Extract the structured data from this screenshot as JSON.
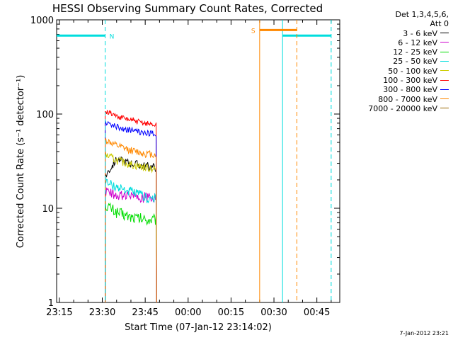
{
  "chart_data": {
    "type": "line",
    "title": "HESSI Observing Summary Count Rates, Corrected",
    "xlabel": "Start Time (07-Jan-12 23:14:02)",
    "ylabel": "Corrected Count Rate (s⁻¹ detector⁻¹)",
    "y_scale": "log",
    "ylim": [
      1,
      1000
    ],
    "xlim": [
      "23:14:02",
      "00:53:00"
    ],
    "x_ticks": [
      "23:15",
      "23:30",
      "23:45",
      "00:00",
      "00:15",
      "00:30",
      "00:45"
    ],
    "y_ticks": [
      "1",
      "10",
      "100",
      "1000"
    ],
    "legend_header": [
      "Det 1,3,4,5,6,",
      "Att 0"
    ],
    "legend_position": "top-right, outside plot",
    "series": [
      {
        "name": "3 - 6 keV",
        "color": "#000000",
        "x": [
          "23:31",
          "23:35",
          "23:40",
          "23:45",
          "23:49"
        ],
        "values": [
          22,
          33,
          30,
          28,
          27
        ]
      },
      {
        "name": "6 - 12 keV",
        "color": "#cc00cc",
        "x": [
          "23:31",
          "23:35",
          "23:40",
          "23:45",
          "23:49"
        ],
        "values": [
          15,
          14,
          13.5,
          13,
          12.5
        ]
      },
      {
        "name": "12 - 25 keV",
        "color": "#00dd00",
        "x": [
          "23:31",
          "23:35",
          "23:40",
          "23:45",
          "23:49"
        ],
        "values": [
          11,
          9,
          8,
          7.5,
          7.5
        ]
      },
      {
        "name": "25 - 50 keV",
        "color": "#00dddd",
        "x": [
          "23:31",
          "23:35",
          "23:40",
          "23:45",
          "23:49"
        ],
        "values": [
          19,
          17,
          15,
          13,
          12.5
        ]
      },
      {
        "name": "50 - 100 keV",
        "color": "#cccc00",
        "x": [
          "23:31",
          "23:35",
          "23:40",
          "23:45",
          "23:49"
        ],
        "values": [
          37,
          32,
          29,
          27,
          26
        ]
      },
      {
        "name": "100 - 300 keV",
        "color": "#ff0000",
        "x": [
          "23:31",
          "23:35",
          "23:40",
          "23:45",
          "23:49"
        ],
        "values": [
          108,
          95,
          86,
          80,
          76
        ]
      },
      {
        "name": "300 - 800 keV",
        "color": "#0000ff",
        "x": [
          "23:31",
          "23:35",
          "23:40",
          "23:45",
          "23:49"
        ],
        "values": [
          83,
          73,
          67,
          63,
          61
        ]
      },
      {
        "name": "800 - 7000 keV",
        "color": "#ff8800",
        "x": [
          "23:31",
          "23:35",
          "23:40",
          "23:45",
          "23:49"
        ],
        "values": [
          53,
          46,
          41,
          38,
          37
        ]
      },
      {
        "name": "7000 - 20000 keV",
        "color": "#996600",
        "x": [],
        "values": []
      }
    ],
    "annotations": [
      {
        "label": "N",
        "color": "#00dddd",
        "type": "night",
        "intervals": [
          [
            "23:14:02",
            "23:31:00"
          ],
          [
            "00:33:00",
            "00:50:00"
          ]
        ],
        "level": 680
      },
      {
        "label": "S",
        "color": "#ff8800",
        "type": "saa",
        "intervals": [
          [
            "00:25:00",
            "00:38:00"
          ]
        ],
        "level": 780
      }
    ]
  },
  "footer": {
    "stamp": "7-Jan-2012 23:21"
  },
  "colors": {
    "background": "#ffffff",
    "axes": "#000000"
  }
}
